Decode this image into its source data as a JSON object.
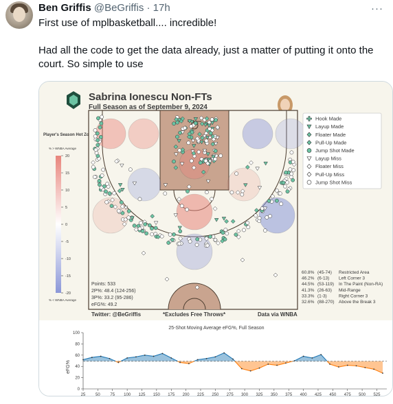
{
  "tweet": {
    "author_name": "Ben Griffis",
    "author_handle": "@BeGriffis",
    "separator": "·",
    "time": "17h",
    "more_glyph": "···",
    "text_line1": "First use of mplbasketball.... incredible!",
    "text_line2": "Had all the code to get the data already, just a matter of putting it onto the court. So simple to use"
  },
  "figure": {
    "title": "Sabrina Ionescu Non-FTs",
    "subtitle": "Full Season as of September 9, 2024",
    "colorbar_title": "Player's Season Hot Zones",
    "colorbar_top_note": "% > WNBA Average",
    "colorbar_bottom_note": "% < WNBA Average",
    "colorbar_ticks": [
      "20",
      "15",
      "10",
      "5",
      "0",
      "-5",
      "-10",
      "-15",
      "-20"
    ],
    "legend": [
      {
        "label": "Hook Made",
        "marker": "plus",
        "fill": "#6cc3a3"
      },
      {
        "label": "Layup Made",
        "marker": "tri-down",
        "fill": "#6cc3a3"
      },
      {
        "label": "Floater Made",
        "marker": "diamond",
        "fill": "#6cc3a3"
      },
      {
        "label": "Pull-Up Made",
        "marker": "diamond",
        "fill": "#6cc3a3"
      },
      {
        "label": "Jump Shot Made",
        "marker": "circle",
        "fill": "#6cc3a3"
      },
      {
        "label": "Layup Miss",
        "marker": "tri-down",
        "fill": "#ffffff"
      },
      {
        "label": "Floater Miss",
        "marker": "diamond",
        "fill": "#ffffff"
      },
      {
        "label": "Pull-Up Miss",
        "marker": "diamond",
        "fill": "#ffffff"
      },
      {
        "label": "Jump Shot Miss",
        "marker": "circle",
        "fill": "#ffffff"
      }
    ],
    "stats": {
      "points": "Points: 533",
      "two_pt": "2P%: 48.4 (124-256)",
      "three_pt": "3P%: 33.2 (95-286)",
      "efg": "eFG%: 49.2"
    },
    "zones": [
      {
        "pct": "60.8%",
        "made": "(45-74)",
        "label": "Restricted Area"
      },
      {
        "pct": "46.2%",
        "made": "(6-13)",
        "label": "Left Corner 3"
      },
      {
        "pct": "44.5%",
        "made": "(53-119)",
        "label": "In The Paint (Non-RA)"
      },
      {
        "pct": "41.3%",
        "made": "(26-63)",
        "label": "Mid-Range"
      },
      {
        "pct": "33.3%",
        "made": "(1-3)",
        "label": "Right Corner 3"
      },
      {
        "pct": "32.6%",
        "made": "(88-270)",
        "label": "Above the Break 3"
      }
    ],
    "footer_left": "Twitter: @BeGriffis",
    "footer_center": "*Excludes Free Throws*",
    "footer_right": "Data via WNBA",
    "colors": {
      "panel_bg": "#f7f5ec",
      "court_line": "#4a3b2e",
      "paint": "#c9a48f",
      "made": "#6cc3a3",
      "hot": "#e8857c",
      "cold": "#8b97d8",
      "above": "#1f77b4",
      "below": "#ff7f0e"
    }
  },
  "chart_data": {
    "type": "line",
    "title": "25-Shot Moving Average eFG%, Full Season",
    "xlabel": "",
    "ylabel": "eFG%",
    "xlim": [
      25,
      542
    ],
    "ylim": [
      0,
      100
    ],
    "xticks": [
      25,
      50,
      75,
      100,
      125,
      150,
      175,
      200,
      225,
      250,
      275,
      300,
      325,
      350,
      375,
      400,
      425,
      450,
      475,
      500,
      525
    ],
    "yticks": [
      0,
      20,
      40,
      60,
      80,
      100
    ],
    "baseline": 49.2,
    "x": [
      25,
      40,
      55,
      70,
      85,
      100,
      115,
      130,
      145,
      160,
      175,
      190,
      205,
      220,
      235,
      250,
      265,
      280,
      295,
      310,
      325,
      340,
      355,
      370,
      385,
      400,
      415,
      430,
      445,
      460,
      475,
      490,
      505,
      520,
      535
    ],
    "y": [
      52,
      56,
      58,
      54,
      47,
      55,
      57,
      60,
      58,
      63,
      55,
      47,
      45,
      52,
      54,
      57,
      64,
      53,
      36,
      32,
      37,
      44,
      42,
      46,
      50,
      58,
      55,
      61,
      44,
      39,
      42,
      41,
      38,
      35,
      28
    ]
  }
}
